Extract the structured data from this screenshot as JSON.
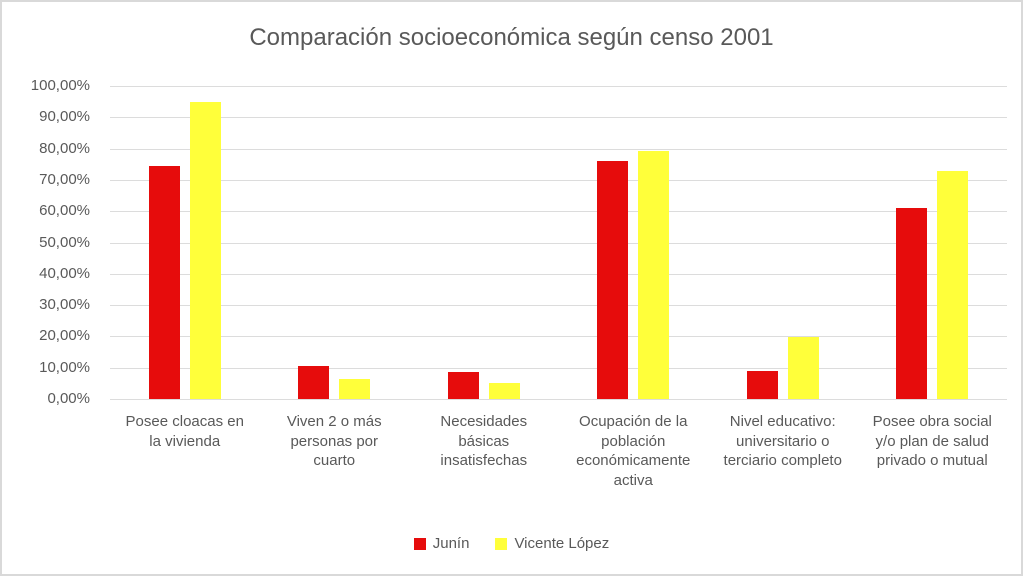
{
  "chart_data": {
    "type": "bar",
    "title": "Comparación socioeconómica según censo 2001",
    "categories": [
      "Posee cloacas en la vivienda",
      "Viven 2 o más personas por cuarto",
      "Necesidades básicas insatisfechas",
      "Ocupación de la población económicamente activa",
      "Nivel educativo: universitario o terciario completo",
      "Posee obra social y/o plan de salud privado o mutual"
    ],
    "series": [
      {
        "name": "Junín",
        "color": "#e60c0c",
        "values": [
          74.5,
          10.7,
          8.5,
          76.0,
          9.0,
          61.0
        ]
      },
      {
        "name": "Vicente López",
        "color": "#ffff3a",
        "values": [
          94.9,
          6.3,
          5.0,
          79.3,
          19.8,
          72.8
        ]
      }
    ],
    "xlabel": "",
    "ylabel": "",
    "ylim": [
      0,
      100
    ],
    "y_ticks_top_to_bottom": [
      "100,00%",
      "90,00%",
      "80,00%",
      "70,00%",
      "60,00%",
      "50,00%",
      "40,00%",
      "30,00%",
      "20,00%",
      "10,00%",
      "0,00%"
    ],
    "grid": "horizontal",
    "legend_position": "bottom",
    "colors": {
      "text": "#595959",
      "gridline": "#dcdcdc",
      "frame_border": "#d9d9d9",
      "background": "#ffffff"
    }
  }
}
